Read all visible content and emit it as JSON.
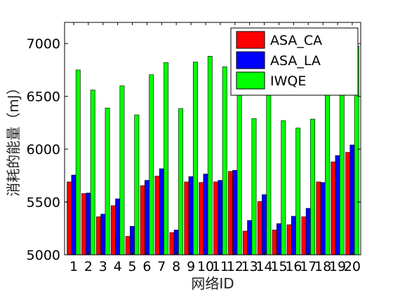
{
  "chart_data": {
    "type": "bar",
    "xlabel": "网络ID",
    "ylabel": "消耗的能量（mJ）",
    "categories": [
      "1",
      "2",
      "3",
      "4",
      "5",
      "6",
      "7",
      "8",
      "9",
      "10",
      "11",
      "12",
      "13",
      "14",
      "15",
      "16",
      "17",
      "18",
      "19",
      "20"
    ],
    "ylim": [
      5000,
      7200
    ],
    "yticks": [
      5000,
      5500,
      6000,
      6500,
      7000
    ],
    "grid": false,
    "legend_position": "top-right",
    "series": [
      {
        "name": "ASA_CA",
        "color": "#ff0000",
        "values": [
          5690,
          5580,
          5360,
          5465,
          5175,
          5655,
          5745,
          5210,
          5690,
          5685,
          5690,
          5790,
          5225,
          5505,
          5235,
          5285,
          5360,
          5690,
          5880,
          5970
        ]
      },
      {
        "name": "ASA_LA",
        "color": "#0000ff",
        "values": [
          5755,
          5585,
          5385,
          5530,
          5270,
          5705,
          5815,
          5235,
          5740,
          5765,
          5705,
          5800,
          5325,
          5570,
          5295,
          5365,
          5440,
          5685,
          5940,
          6040
        ]
      },
      {
        "name": "IWQE",
        "color": "#00ff00",
        "values": [
          6750,
          6560,
          6390,
          6600,
          6325,
          6705,
          6820,
          6385,
          6825,
          6880,
          6780,
          6650,
          6290,
          6570,
          6270,
          6200,
          6285,
          6690,
          6965,
          6975
        ]
      }
    ]
  }
}
